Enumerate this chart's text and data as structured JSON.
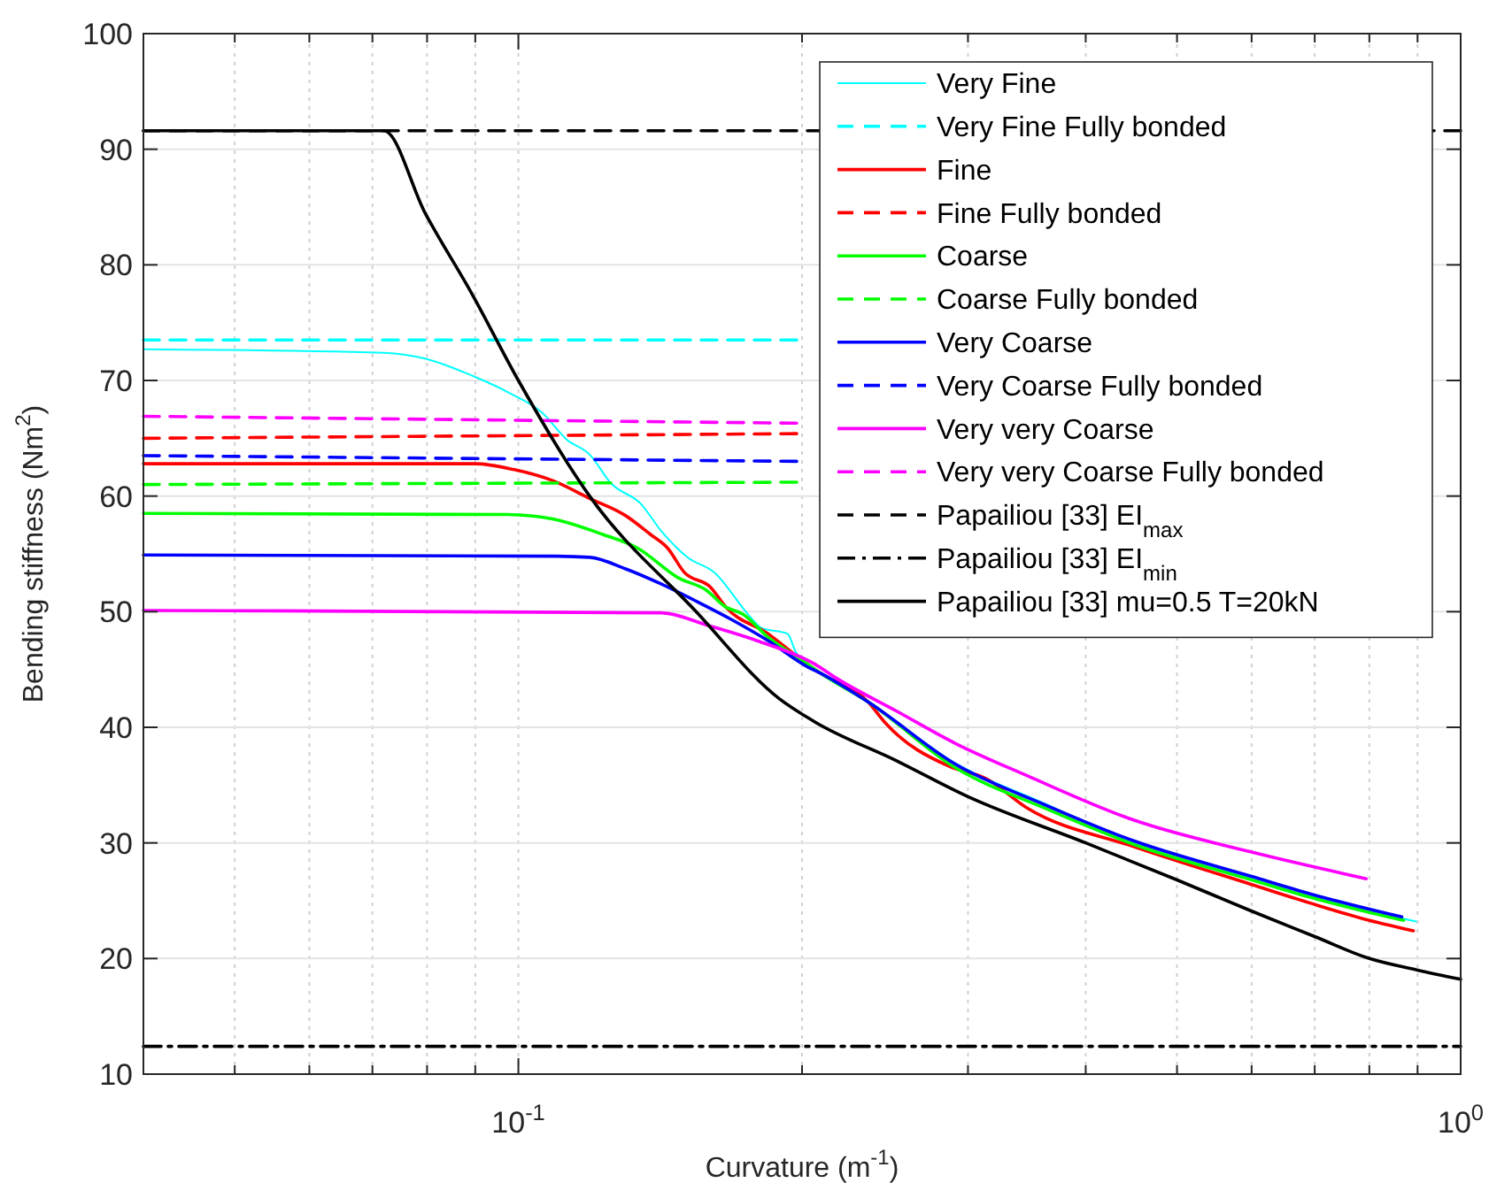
{
  "chart_data": {
    "type": "line",
    "xlabel": "Curvature (m$^{-1}$)",
    "ylabel": "Bending stiffness (Nm$^{2}$)",
    "log": "x",
    "grid": true,
    "legend": "top right",
    "xlim": [
      0.04,
      1
    ],
    "ylim": [
      10,
      100
    ],
    "xticks": [
      {
        "value": 0.05,
        "label": null
      },
      {
        "value": 0.06,
        "label": null
      },
      {
        "value": 0.07,
        "label": null
      },
      {
        "value": 0.08,
        "label": null
      },
      {
        "value": 0.09,
        "label": null
      },
      {
        "value": 0.1,
        "label": "10$^{-1}$"
      },
      {
        "value": 0.2,
        "label": null
      },
      {
        "value": 0.3,
        "label": null
      },
      {
        "value": 0.4,
        "label": null
      },
      {
        "value": 0.5,
        "label": null
      },
      {
        "value": 0.6,
        "label": null
      },
      {
        "value": 0.7,
        "label": null
      },
      {
        "value": 0.8,
        "label": null
      },
      {
        "value": 0.9,
        "label": null
      },
      {
        "value": 1,
        "label": "10$^{0}$"
      }
    ],
    "yticks": [
      10,
      20,
      30,
      40,
      50,
      60,
      70,
      80,
      90,
      100
    ],
    "series": [
      {
        "name": "Very Fine",
        "color": "#00ffff",
        "line_style": "solid",
        "x": [
          0.04,
          0.072,
          0.0796,
          0.0894,
          0.0974,
          0.106,
          0.1125,
          0.119,
          0.1254,
          0.135,
          0.1417,
          0.1512,
          0.1614,
          0.176,
          0.181,
          0.193,
          0.197,
          0.209,
          0.235,
          0.291,
          0.362,
          0.449,
          0.6,
          0.692,
          0.897
        ],
        "values": [
          72.7,
          72.4,
          71.9,
          70.4,
          69.0,
          67.2,
          64.9,
          63.6,
          61.1,
          59.3,
          57.0,
          54.7,
          53.4,
          49.6,
          48.6,
          48.1,
          46.5,
          44.7,
          42.2,
          36.9,
          33.4,
          30.0,
          26.9,
          25.4,
          23.2
        ]
      },
      {
        "name": "Very Fine Fully bonded",
        "color": "#00ffff",
        "line_style": "dashed",
        "x": [
          0.04,
          0.2
        ],
        "values": [
          73.5,
          73.5
        ]
      },
      {
        "name": "Fine",
        "color": "#ff0000",
        "line_style": "solid",
        "x": [
          0.04,
          0.09,
          0.0988,
          0.109,
          0.119,
          0.13,
          0.138,
          0.144,
          0.15,
          0.16,
          0.166,
          0.184,
          0.2,
          0.209,
          0.235,
          0.245,
          0.287,
          0.313,
          0.347,
          0.449,
          0.6,
          0.692,
          0.8,
          0.891
        ],
        "values": [
          62.8,
          62.8,
          62.3,
          61.3,
          59.8,
          58.3,
          56.7,
          55.5,
          53.4,
          52.1,
          50.4,
          48.1,
          45.8,
          44.7,
          42.2,
          40.4,
          36.6,
          35.6,
          33.0,
          29.7,
          26.4,
          24.8,
          23.3,
          22.4
        ]
      },
      {
        "name": "Fine Fully bonded",
        "color": "#ff0000",
        "line_style": "dashed",
        "x": [
          0.04,
          0.2
        ],
        "values": [
          65.0,
          65.4
        ]
      },
      {
        "name": "Coarse",
        "color": "#00ff00",
        "line_style": "solid",
        "x": [
          0.04,
          0.0974,
          0.109,
          0.1227,
          0.1338,
          0.148,
          0.158,
          0.166,
          0.173,
          0.184,
          0.2,
          0.209,
          0.235,
          0.291,
          0.362,
          0.449,
          0.6,
          0.692,
          0.87
        ],
        "values": [
          58.5,
          58.4,
          58.0,
          56.7,
          55.5,
          52.9,
          51.9,
          50.4,
          49.8,
          47.8,
          45.8,
          44.7,
          42.2,
          36.5,
          33.0,
          29.9,
          26.8,
          25.3,
          23.3
        ]
      },
      {
        "name": "Coarse Fully bonded",
        "color": "#00ff00",
        "line_style": "dashed",
        "x": [
          0.04,
          0.2
        ],
        "values": [
          61.0,
          61.2
        ]
      },
      {
        "name": "Very Coarse",
        "color": "#0000ff",
        "line_style": "solid",
        "x": [
          0.04,
          0.11,
          0.119,
          0.13,
          0.1417,
          0.1545,
          0.1685,
          0.184,
          0.203,
          0.209,
          0.235,
          0.291,
          0.362,
          0.449,
          0.6,
          0.692,
          0.866
        ],
        "values": [
          54.9,
          54.8,
          54.7,
          53.7,
          52.4,
          50.9,
          49.3,
          47.5,
          45.2,
          44.7,
          42.2,
          36.8,
          33.3,
          30.2,
          27.1,
          25.6,
          23.6
        ]
      },
      {
        "name": "Very Coarse Fully bonded",
        "color": "#0000ff",
        "line_style": "dashed",
        "x": [
          0.04,
          0.2
        ],
        "values": [
          63.5,
          63.0
        ]
      },
      {
        "name": "Very very Coarse",
        "color": "#ff00ff",
        "line_style": "solid",
        "x": [
          0.04,
          0.1417,
          0.159,
          0.179,
          0.206,
          0.218,
          0.252,
          0.291,
          0.347,
          0.449,
          0.6,
          0.794
        ],
        "values": [
          50.1,
          49.9,
          48.8,
          47.5,
          45.5,
          44.2,
          41.4,
          38.6,
          35.8,
          32.0,
          29.2,
          26.9
        ]
      },
      {
        "name": "Very very Coarse Fully bonded",
        "color": "#ff00ff",
        "line_style": "dashed",
        "x": [
          0.04,
          0.2
        ],
        "values": [
          66.9,
          66.3
        ]
      },
      {
        "name": "Papailiou [33] EI$_{max}$",
        "color": "#000000",
        "line_style": "dashed",
        "x": [
          0.04,
          1
        ],
        "values": [
          91.6,
          91.6
        ]
      },
      {
        "name": "Papailiou [33] EI$_{min}$",
        "color": "#000000",
        "line_style": "dashdot",
        "x": [
          0.04,
          1
        ],
        "values": [
          12.4,
          12.4
        ]
      },
      {
        "name": "Papailiou [33] mu=0.5 T=20kN",
        "color": "#000000",
        "line_style": "solid",
        "x": [
          0.04,
          0.072,
          0.0796,
          0.0894,
          0.1,
          0.119,
          0.154,
          0.189,
          0.206,
          0.252,
          0.3,
          0.4,
          0.5,
          0.6,
          0.7,
          0.8,
          0.9,
          1
        ],
        "values": [
          91.6,
          91.6,
          84.5,
          77.4,
          70.0,
          60.0,
          50.1,
          42.5,
          40.5,
          37.1,
          34.0,
          30.0,
          26.8,
          24.1,
          21.9,
          20.0,
          19.0,
          18.2
        ]
      }
    ]
  }
}
